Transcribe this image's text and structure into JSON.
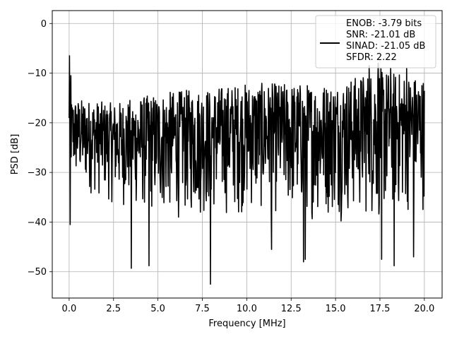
{
  "chart_data": {
    "type": "line",
    "title": "",
    "xlabel": "Frequency [MHz]",
    "ylabel": "PSD [dB]",
    "xlim": [
      -0.95,
      21.0
    ],
    "ylim": [
      -55.3,
      2.6
    ],
    "xticks": [
      0.0,
      2.5,
      5.0,
      7.5,
      10.0,
      12.5,
      15.0,
      17.5,
      20.0
    ],
    "xtick_labels": [
      "0.0",
      "2.5",
      "5.0",
      "7.5",
      "10.0",
      "12.5",
      "15.0",
      "17.5",
      "20.0"
    ],
    "yticks": [
      0,
      -10,
      -20,
      -30,
      -40,
      -50
    ],
    "ytick_labels": [
      "0",
      "−10",
      "−20",
      "−30",
      "−40",
      "−50"
    ],
    "grid": true,
    "legend_position": "top-right",
    "legend_lines": [
      "ENOB: -3.79 bits",
      "SNR: -21.01 dB",
      "SINAD: -21.05 dB",
      "SFDR: 2.22"
    ],
    "series": [
      {
        "color": "#000000",
        "x_range": [
          0.0,
          20.0
        ],
        "n_points": 1024,
        "noise_envelope": {
          "x": [
            0,
            2.5,
            5,
            7.5,
            10,
            12.5,
            15,
            17.5,
            20
          ],
          "upper": [
            -15,
            -16,
            -14,
            -13,
            -12,
            -12,
            -12,
            -9,
            -11
          ],
          "lower": [
            -33,
            -37,
            -40,
            -40,
            -39,
            -40,
            -40,
            -41,
            -38
          ]
        },
        "spikes": [
          {
            "x": 0.02,
            "y": -6.5
          },
          {
            "x": 0.1,
            "y": -10.5
          },
          {
            "x": 0.05,
            "y": -40.5
          },
          {
            "x": 3.5,
            "y": -49.3
          },
          {
            "x": 4.5,
            "y": -48.8
          },
          {
            "x": 7.95,
            "y": -52.5
          },
          {
            "x": 11.4,
            "y": -45.5
          },
          {
            "x": 13.2,
            "y": -48.0
          },
          {
            "x": 13.3,
            "y": -47.5
          },
          {
            "x": 18.3,
            "y": -48.8
          },
          {
            "x": 17.6,
            "y": -47.5
          },
          {
            "x": 19.4,
            "y": -47.0
          },
          {
            "x": 16.9,
            "y": -8.5
          },
          {
            "x": 17.4,
            "y": -8.0
          },
          {
            "x": 18.1,
            "y": -9.0
          },
          {
            "x": 19.0,
            "y": -9.0
          }
        ]
      }
    ]
  }
}
